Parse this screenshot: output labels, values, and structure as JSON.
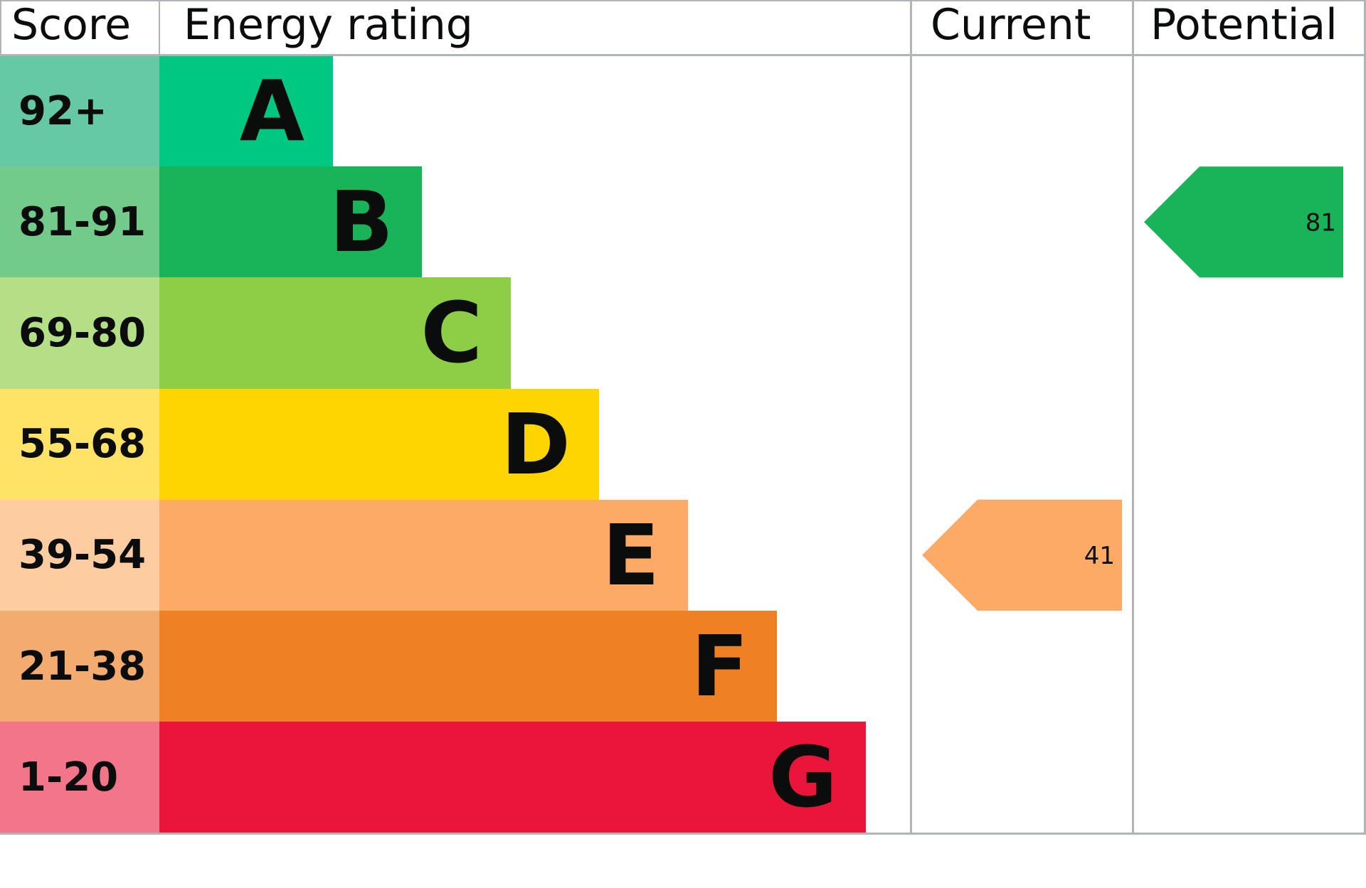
{
  "chart_data": {
    "type": "bar",
    "headers": {
      "score": "Score",
      "rating": "Energy rating",
      "current": "Current",
      "potential": "Potential"
    },
    "bands": [
      {
        "score": "92+",
        "letter": "A",
        "color": "#00c781",
        "score_color": "#64c9a4"
      },
      {
        "score": "81-91",
        "letter": "B",
        "color": "#19b459",
        "score_color": "#73cb8b"
      },
      {
        "score": "69-80",
        "letter": "C",
        "color": "#8dce46",
        "score_color": "#b4df86"
      },
      {
        "score": "55-68",
        "letter": "D",
        "color": "#ffd500",
        "score_color": "#ffe366"
      },
      {
        "score": "39-54",
        "letter": "E",
        "color": "#fcaa65",
        "score_color": "#fdcca1"
      },
      {
        "score": "21-38",
        "letter": "F",
        "color": "#ef8023",
        "score_color": "#f4ab70"
      },
      {
        "score": "1-20",
        "letter": "G",
        "color": "#e9153b",
        "score_color": "#f2758a"
      }
    ],
    "current": {
      "value": "41",
      "band": "E",
      "color": "#fcaa65"
    },
    "potential": {
      "value": "81",
      "band": "B",
      "color": "#19b459"
    }
  }
}
